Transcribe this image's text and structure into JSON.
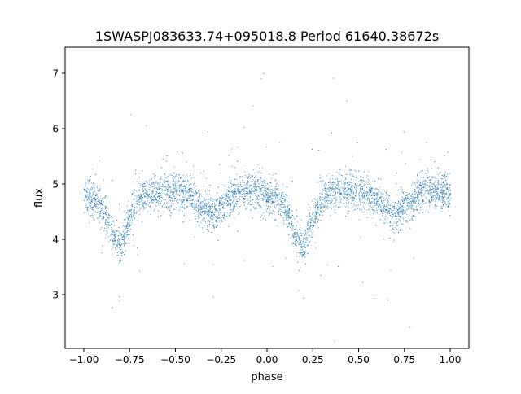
{
  "chart_data": {
    "type": "scatter",
    "title": "1SWASPJ083633.74+095018.8 Period 61640.38672s",
    "xlabel": "phase",
    "ylabel": "flux",
    "xlim": [
      -1.102,
      1.102
    ],
    "ylim": [
      2.03,
      7.47
    ],
    "xticks": [
      -1.0,
      -0.75,
      -0.5,
      -0.25,
      0.0,
      0.25,
      0.5,
      0.75,
      1.0
    ],
    "xtick_labels": [
      "−1.00",
      "−0.75",
      "−0.50",
      "−0.25",
      "0.00",
      "0.25",
      "0.50",
      "0.75",
      "1.00"
    ],
    "yticks": [
      3,
      4,
      5,
      6,
      7
    ],
    "ytick_labels": [
      "3",
      "4",
      "5",
      "6",
      "7"
    ],
    "grid": false,
    "marker_color": "#1f77b4",
    "binned_trend": {
      "phase": [
        -1.0,
        -0.95,
        -0.9,
        -0.85,
        -0.8,
        -0.75,
        -0.7,
        -0.65,
        -0.6,
        -0.55,
        -0.5,
        -0.45,
        -0.4,
        -0.35,
        -0.3,
        -0.25,
        -0.2,
        -0.15,
        -0.1,
        -0.05,
        0.0,
        0.05,
        0.1,
        0.15,
        0.2,
        0.25,
        0.3,
        0.35,
        0.4,
        0.45,
        0.5,
        0.55,
        0.6,
        0.65,
        0.7,
        0.75,
        0.8,
        0.85,
        0.9,
        0.95,
        1.0
      ],
      "flux": [
        4.8,
        4.75,
        4.55,
        4.1,
        3.85,
        4.4,
        4.75,
        4.85,
        4.88,
        4.9,
        4.88,
        4.82,
        4.72,
        4.55,
        4.45,
        4.6,
        4.78,
        4.85,
        4.88,
        4.88,
        4.8,
        4.75,
        4.55,
        4.1,
        3.85,
        4.4,
        4.75,
        4.85,
        4.88,
        4.9,
        4.88,
        4.82,
        4.72,
        4.55,
        4.45,
        4.6,
        4.78,
        4.85,
        4.88,
        4.88,
        4.8
      ]
    }
  }
}
